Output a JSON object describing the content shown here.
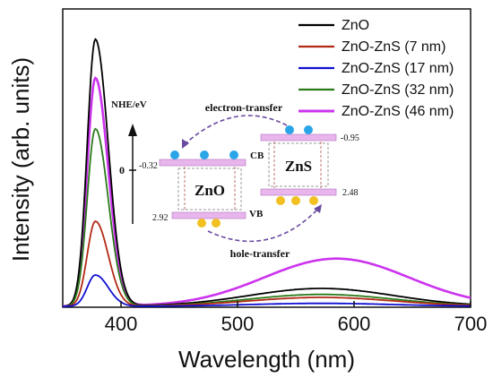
{
  "chart_data": {
    "type": "line",
    "xlabel": "Wavelength (nm)",
    "ylabel": "Intensity (arb. units)",
    "xlim": [
      350,
      700
    ],
    "ylim": [
      0,
      1.0
    ],
    "x_ticks": [
      400,
      500,
      600,
      700
    ],
    "grid": false,
    "legend_position": "top-right",
    "series": [
      {
        "name": "ZnO",
        "color": "#000000",
        "peak_nm": 378,
        "peak": 0.895,
        "broad_center": 572,
        "broad": 0.06
      },
      {
        "name": "ZnO-ZnS (7 nm)",
        "color": "#b22a14",
        "peak_nm": 378,
        "peak": 0.285,
        "broad_center": 572,
        "broad": 0.03
      },
      {
        "name": "ZnO-ZnS (17 nm)",
        "color": "#1010d0",
        "peak_nm": 378,
        "peak": 0.105,
        "broad_center": 572,
        "broad": 0.01
      },
      {
        "name": "ZnO-ZnS (32 nm)",
        "color": "#2a7a1a",
        "peak_nm": 378,
        "peak": 0.595,
        "broad_center": 572,
        "broad": 0.04
      },
      {
        "name": "ZnO-ZnS (46 nm)",
        "color": "#cc33ee",
        "peak_nm": 378,
        "peak": 0.765,
        "broad_center": 585,
        "broad": 0.16
      }
    ]
  },
  "inset": {
    "nhe_label": "NHE/eV",
    "zero_label": "0",
    "electron_transfer": "electron-transfer",
    "hole_transfer": "hole-transfer",
    "zno": {
      "name": "ZnO",
      "cb_value": "-0.32",
      "vb_value": "2.92",
      "cb_label": "CB",
      "vb_label": "VB"
    },
    "zns": {
      "name": "ZnS",
      "cb_value": "-0.95",
      "vb_value": "2.48"
    },
    "colors": {
      "band": "#e8b6ec",
      "electron": "#2aa6e8",
      "hole": "#f2c020",
      "arrow": "#6a4aa0",
      "electron_text": "#4b8fd6",
      "hole_text": "#d9a72a"
    }
  }
}
